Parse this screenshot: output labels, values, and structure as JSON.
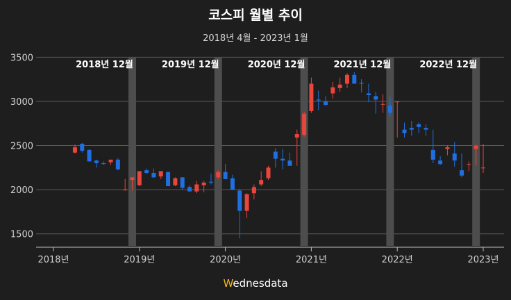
{
  "chart_data": {
    "type": "candlestick",
    "title": "코스피 월별 추이",
    "subtitle": "2018년 4월 - 2023년 1월",
    "ylim": [
      1380,
      3550
    ],
    "yticks": [
      1500,
      2000,
      2500,
      3000,
      3500
    ],
    "xticks": [
      "2018년",
      "2019년",
      "2020년",
      "2021년",
      "2022년",
      "2023년"
    ],
    "colors": {
      "up": "#e8453c",
      "down": "#1f6fe0",
      "band": "#4d4d4d",
      "grid": "#5a5a5a"
    },
    "highlight_labels": [
      "2018년 12월",
      "2019년 12월",
      "2020년 12월",
      "2021년 12월",
      "2022년 12월"
    ],
    "highlight_months": [
      "2018-12",
      "2019-12",
      "2020-12",
      "2021-12",
      "2022-12"
    ],
    "months": [
      "2018-04",
      "2018-05",
      "2018-06",
      "2018-07",
      "2018-08",
      "2018-09",
      "2018-10",
      "2018-11",
      "2018-12",
      "2019-01",
      "2019-02",
      "2019-03",
      "2019-04",
      "2019-05",
      "2019-06",
      "2019-07",
      "2019-08",
      "2019-09",
      "2019-10",
      "2019-11",
      "2019-12",
      "2020-01",
      "2020-02",
      "2020-03",
      "2020-04",
      "2020-05",
      "2020-06",
      "2020-07",
      "2020-08",
      "2020-09",
      "2020-10",
      "2020-11",
      "2020-12",
      "2021-01",
      "2021-02",
      "2021-03",
      "2021-04",
      "2021-05",
      "2021-06",
      "2021-07",
      "2021-08",
      "2021-09",
      "2021-10",
      "2021-11",
      "2021-12",
      "2022-01",
      "2022-02",
      "2022-03",
      "2022-04",
      "2022-05",
      "2022-06",
      "2022-07",
      "2022-08",
      "2022-09",
      "2022-10",
      "2022-11",
      "2022-12",
      "2023-01"
    ],
    "open": [
      2420,
      2520,
      2450,
      2330,
      2300,
      2310,
      2340,
      2000,
      2110,
      2050,
      2220,
      2190,
      2150,
      2200,
      2050,
      2140,
      2030,
      1980,
      2050,
      2090,
      2140,
      2200,
      2130,
      1990,
      1760,
      1960,
      2060,
      2130,
      2430,
      2350,
      2330,
      2590,
      2620,
      2890,
      3020,
      3000,
      3090,
      3150,
      3200,
      3300,
      3210,
      3090,
      3060,
      2970,
      2950,
      2990,
      2680,
      2700,
      2740,
      2700,
      2450,
      2330,
      2460,
      2410,
      2220,
      2290,
      2460,
      2250
    ],
    "high": [
      2510,
      2530,
      2460,
      2340,
      2320,
      2340,
      2360,
      2120,
      2140,
      2210,
      2240,
      2240,
      2210,
      2200,
      2140,
      2130,
      2050,
      2100,
      2100,
      2180,
      2220,
      2290,
      2170,
      2010,
      1960,
      2060,
      2210,
      2270,
      2470,
      2460,
      2420,
      2680,
      2880,
      3270,
      3120,
      3060,
      3220,
      3270,
      3320,
      3330,
      3250,
      3200,
      3110,
      3080,
      3050,
      3000,
      2760,
      2780,
      2760,
      2740,
      2680,
      2380,
      2500,
      2540,
      2410,
      2320,
      2510,
      2520
    ],
    "low": [
      2410,
      2420,
      2320,
      2250,
      2280,
      2280,
      2220,
      1990,
      1990,
      2040,
      2180,
      2130,
      2120,
      2040,
      2040,
      2000,
      1980,
      1960,
      1970,
      2060,
      2120,
      2140,
      2000,
      1450,
      1680,
      1890,
      2040,
      2110,
      2250,
      2230,
      2280,
      2270,
      2600,
      2870,
      2900,
      2950,
      3030,
      3110,
      3150,
      3200,
      3100,
      2990,
      2860,
      2870,
      2830,
      2590,
      2590,
      2610,
      2640,
      2610,
      2300,
      2280,
      2390,
      2260,
      2140,
      2210,
      2280,
      2190
    ],
    "close": [
      2480,
      2440,
      2320,
      2300,
      2290,
      2340,
      2230,
      2000,
      2140,
      2210,
      2190,
      2140,
      2210,
      2040,
      2130,
      2020,
      1980,
      2060,
      2080,
      2080,
      2200,
      2120,
      2000,
      1760,
      1950,
      2030,
      2110,
      2250,
      2350,
      2330,
      2270,
      2630,
      2860,
      3200,
      3010,
      2960,
      3160,
      3190,
      3300,
      3200,
      3200,
      3070,
      3020,
      2970,
      2870,
      3000,
      2640,
      2680,
      2710,
      2680,
      2340,
      2290,
      2480,
      2330,
      2160,
      2290,
      2500,
      2250
    ]
  },
  "footer": {
    "brand_prefix": "W",
    "brand_rest": "ednesdata"
  }
}
